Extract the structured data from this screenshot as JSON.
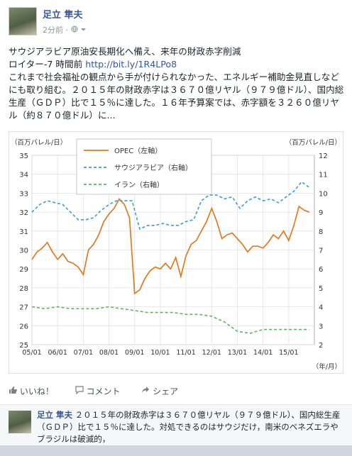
{
  "post": {
    "author": "足立 隼夫",
    "time": "2分前",
    "privacy_separator": "·",
    "line1": "サウジアラビア原油安長期化へ備え、来年の財政赤字削減",
    "source": "ロイター-7 時間前",
    "link": "http://bit.ly/1R4LPo8",
    "body": "これまで社会福祉の観点から手が付けられなかった、エネルギー補助金見直しなどにも取り組む。２０１５年の財政赤字は３６７０億リヤル（９７９億ドル）、国内総生産（ＧＤＰ）比で１５％に達した。１６年予算案では、赤字額を３２６０億リヤル（約８７０億ドル）に..."
  },
  "actions": {
    "like": "いいね！",
    "comment": "コメント",
    "share": "シェア"
  },
  "comment": {
    "author": "足立 隼夫",
    "text": "２０１５年の財政赤字は３６７０億リヤル（９７９億ドル）、国内総生産（ＧＤＰ）比で１５％に達した。対処できるのはサウジだけ，南米のベネズエラやブラジルは破滅的，"
  },
  "icons": {
    "globe": "globe-icon",
    "chevron": "chevron-down-icon",
    "like": "thumbs-up-icon",
    "comment": "comment-icon",
    "share": "share-icon"
  },
  "chart_data": {
    "type": "line",
    "ylabel_left": "（百万バレル/日）",
    "ylabel_right": "（百万バレル/日）",
    "xlabel_unit": "（年/月）",
    "ylim_left": [
      25,
      35
    ],
    "ylim_right": [
      2,
      12
    ],
    "yticks_left": [
      25,
      26,
      27,
      28,
      29,
      30,
      31,
      32,
      33,
      34,
      35
    ],
    "yticks_right": [
      2,
      3,
      4,
      5,
      6,
      7,
      8,
      9,
      10,
      11,
      12
    ],
    "xticks": [
      "05/01",
      "06/01",
      "07/01",
      "08/01",
      "09/01",
      "10/01",
      "11/01",
      "12/01",
      "13/01",
      "14/01",
      "15/01"
    ],
    "xlim": [
      0,
      11
    ],
    "grid": true,
    "legend_position": "top-left",
    "series": [
      {
        "name": "OPEC（左軸）",
        "axis": "left",
        "color": "#e07a1f",
        "style": "solid",
        "x": [
          0.0,
          0.2,
          0.4,
          0.6,
          0.8,
          1.0,
          1.2,
          1.4,
          1.6,
          1.8,
          2.0,
          2.2,
          2.4,
          2.6,
          2.8,
          3.0,
          3.2,
          3.4,
          3.6,
          3.8,
          4.0,
          4.2,
          4.4,
          4.6,
          4.8,
          5.0,
          5.2,
          5.4,
          5.6,
          5.8,
          6.0,
          6.2,
          6.4,
          6.6,
          6.8,
          7.0,
          7.2,
          7.4,
          7.6,
          7.8,
          8.0,
          8.2,
          8.4,
          8.6,
          8.8,
          9.0,
          9.2,
          9.4,
          9.6,
          9.8,
          10.0,
          10.2,
          10.4,
          10.6,
          10.8
        ],
        "y": [
          29.5,
          29.9,
          30.1,
          30.4,
          29.9,
          29.5,
          29.8,
          29.4,
          29.3,
          29.1,
          28.7,
          30.0,
          30.3,
          30.8,
          31.5,
          31.9,
          32.2,
          32.7,
          32.4,
          31.7,
          27.7,
          27.9,
          28.5,
          28.9,
          29.1,
          29.0,
          29.3,
          29.0,
          29.6,
          28.6,
          29.7,
          30.3,
          30.5,
          31.0,
          31.5,
          32.2,
          31.5,
          30.6,
          30.8,
          30.9,
          30.6,
          30.3,
          29.9,
          30.2,
          30.2,
          30.1,
          30.4,
          30.8,
          30.6,
          31.0,
          30.5,
          31.3,
          32.3,
          32.1,
          32.0
        ]
      },
      {
        "name": "サウジアラビア（右軸）",
        "axis": "right",
        "color": "#3a9bd9",
        "style": "dashed",
        "x": [
          0.0,
          0.3,
          0.6,
          0.9,
          1.2,
          1.5,
          1.8,
          2.1,
          2.4,
          2.7,
          3.0,
          3.3,
          3.6,
          3.9,
          4.2,
          4.5,
          4.8,
          5.1,
          5.4,
          5.7,
          6.0,
          6.3,
          6.6,
          6.9,
          7.2,
          7.5,
          7.8,
          8.1,
          8.4,
          8.7,
          9.0,
          9.3,
          9.6,
          9.9,
          10.2,
          10.5,
          10.8
        ],
        "y": [
          9.0,
          9.4,
          9.6,
          9.5,
          9.4,
          9.0,
          8.6,
          8.6,
          8.7,
          9.1,
          9.4,
          9.6,
          9.6,
          9.6,
          8.1,
          8.3,
          8.3,
          8.4,
          8.3,
          8.3,
          8.5,
          8.6,
          9.6,
          9.9,
          9.9,
          9.7,
          9.8,
          9.2,
          9.6,
          9.8,
          9.6,
          9.7,
          9.5,
          9.8,
          10.1,
          10.6,
          10.3
        ]
      },
      {
        "name": "イラン（右軸）",
        "axis": "right",
        "color": "#5fb55f",
        "style": "dashed",
        "x": [
          0.0,
          0.5,
          1.0,
          1.5,
          2.0,
          2.5,
          3.0,
          3.5,
          4.0,
          4.5,
          5.0,
          5.5,
          6.0,
          6.5,
          7.0,
          7.5,
          8.0,
          8.5,
          9.0,
          9.5,
          10.0,
          10.5,
          10.8
        ],
        "y": [
          4.0,
          3.9,
          4.0,
          3.9,
          3.9,
          3.9,
          4.0,
          3.9,
          3.8,
          3.7,
          3.7,
          3.7,
          3.6,
          3.6,
          3.5,
          3.2,
          2.7,
          2.6,
          2.8,
          2.8,
          2.8,
          2.8,
          2.8
        ]
      }
    ]
  }
}
